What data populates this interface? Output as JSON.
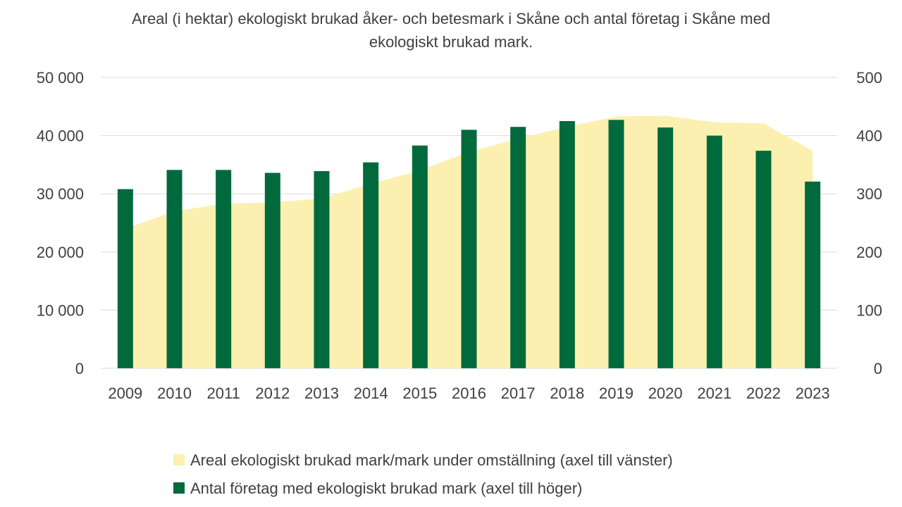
{
  "chart_data": {
    "type": "bar",
    "title_lines": [
      "Areal (i hektar) ekologiskt brukad åker- och betesmark i Skåne och antal företag i Skåne med",
      "ekologiskt brukad mark."
    ],
    "categories": [
      "2009",
      "2010",
      "2011",
      "2012",
      "2013",
      "2014",
      "2015",
      "2016",
      "2017",
      "2018",
      "2019",
      "2020",
      "2021",
      "2022",
      "2023"
    ],
    "y_left": {
      "min": 0,
      "max": 50000,
      "ticks": [
        0,
        10000,
        20000,
        30000,
        40000,
        50000
      ],
      "tick_labels": [
        "0",
        "10 000",
        "20 000",
        "30 000",
        "40 000",
        "50 000"
      ]
    },
    "y_right": {
      "min": 0,
      "max": 500,
      "ticks": [
        0,
        100,
        200,
        300,
        400,
        500
      ],
      "tick_labels": [
        "0",
        "100",
        "200",
        "300",
        "400",
        "500"
      ]
    },
    "grid": true,
    "legend_position": "bottom",
    "series": [
      {
        "name": "Areal ekologiskt brukad mark/mark under omställning (axel till vänster)",
        "kind": "area",
        "axis": "left",
        "color": "#FBF0B0",
        "values": [
          24000,
          27000,
          28300,
          28500,
          29200,
          31700,
          34000,
          37200,
          39500,
          41500,
          43300,
          43400,
          42300,
          42100,
          37400
        ]
      },
      {
        "name": "Antal företag med ekologiskt brukad mark (axel till höger)",
        "kind": "bar",
        "axis": "right",
        "color": "#006A3C",
        "values": [
          308,
          341,
          341,
          336,
          339,
          354,
          383,
          410,
          415,
          425,
          427,
          414,
          400,
          374,
          321
        ]
      }
    ]
  }
}
